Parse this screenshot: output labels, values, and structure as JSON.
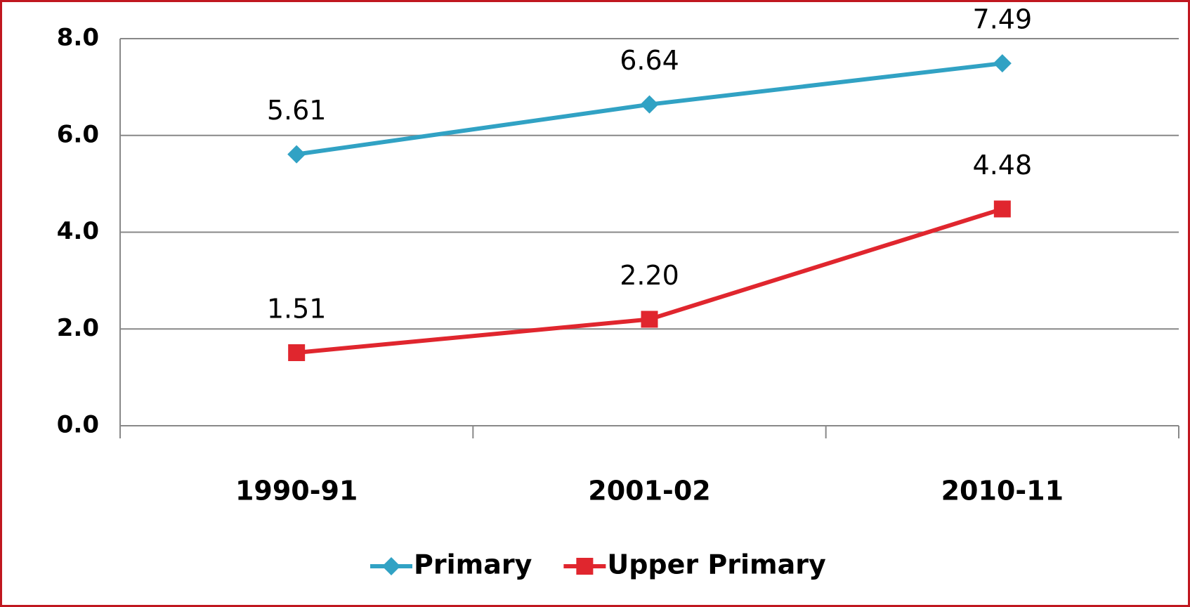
{
  "chart_data": {
    "type": "line",
    "categories": [
      "1990-91",
      "2001-02",
      "2010-11"
    ],
    "series": [
      {
        "name": "Primary",
        "color": "#31a2c4",
        "marker": "diamond",
        "values": [
          5.61,
          6.64,
          7.49
        ],
        "value_labels": [
          "5.61",
          "6.64",
          "7.49"
        ]
      },
      {
        "name": "Upper Primary",
        "color": "#e0262e",
        "marker": "square",
        "values": [
          1.51,
          2.2,
          4.48
        ],
        "value_labels": [
          "1.51",
          "2.20",
          "4.48"
        ]
      }
    ],
    "ylim": [
      0,
      8
    ],
    "yticks": [
      {
        "value": 0,
        "label": "0.0"
      },
      {
        "value": 2,
        "label": "2.0"
      },
      {
        "value": 4,
        "label": "4.0"
      },
      {
        "value": 6,
        "label": "6.0"
      },
      {
        "value": 8,
        "label": "8.0"
      }
    ],
    "grid": true,
    "legend": "bottom"
  }
}
